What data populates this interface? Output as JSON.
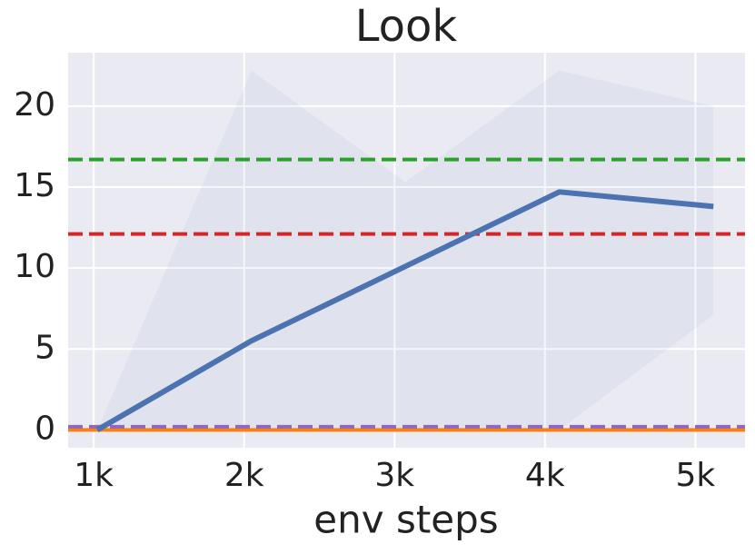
{
  "chart_data": {
    "type": "line",
    "title": "Look",
    "x_label": "env steps",
    "x": [
      1024,
      2048,
      3072,
      4096,
      5120
    ],
    "series": [
      {
        "color": "#4c72b0",
        "values": [
          0,
          5.5,
          10.1,
          14.7,
          13.8
        ],
        "band_upper": [
          0,
          22.2,
          15.3,
          22.2,
          20
        ],
        "band_lower": [
          0,
          0,
          0,
          0,
          7.1
        ]
      }
    ],
    "reference_lines": [
      {
        "value": 16.7,
        "color": "#2ca02c",
        "style": "dashed"
      },
      {
        "value": 12.1,
        "color": "#d62728",
        "style": "dashed"
      },
      {
        "value": 0,
        "color": "#ff7f0e",
        "style": "solid"
      },
      {
        "value": 0.2,
        "color": "#9467bd",
        "style": "dashed"
      }
    ],
    "xlim": [
      830,
      5330
    ],
    "ylim": [
      -1.1,
      23.3
    ],
    "xticks": [
      {
        "value": 1000,
        "label": "1k"
      },
      {
        "value": 2000,
        "label": "2k"
      },
      {
        "value": 3000,
        "label": "3k"
      },
      {
        "value": 4000,
        "label": "4k"
      },
      {
        "value": 5000,
        "label": "5k"
      }
    ],
    "yticks": [
      0,
      5,
      10,
      15,
      20
    ],
    "grid": true
  }
}
